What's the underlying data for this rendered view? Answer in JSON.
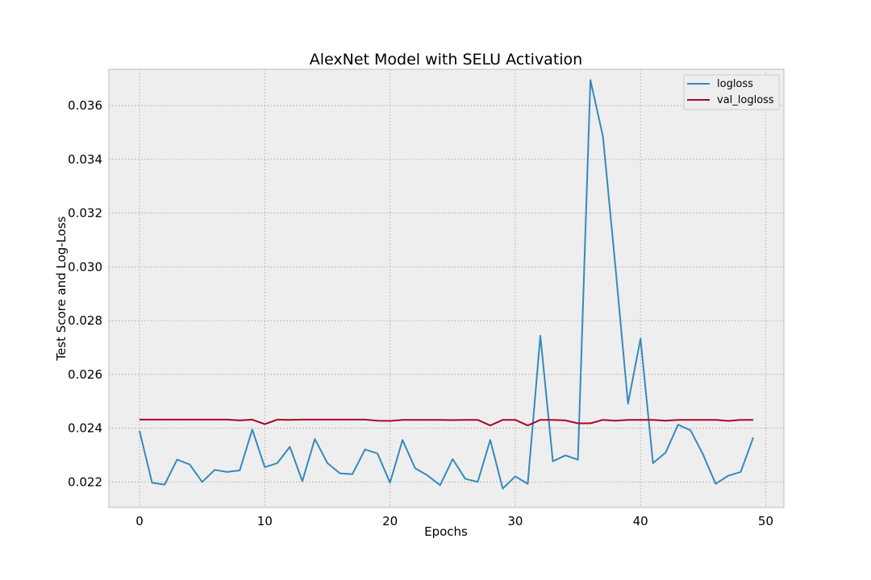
{
  "chart_data": {
    "type": "line",
    "title": "AlexNet Model with SELU Activation",
    "xlabel": "Epochs",
    "ylabel": "Test Score and Log-Loss",
    "xlim": [
      -2.45,
      51.45
    ],
    "ylim": [
      0.02105,
      0.03735
    ],
    "xticks": [
      0,
      10,
      20,
      30,
      40,
      50
    ],
    "xtick_labels": [
      "0",
      "10",
      "20",
      "30",
      "40",
      "50"
    ],
    "yticks": [
      0.022,
      0.024,
      0.026,
      0.028,
      0.03,
      0.032,
      0.034,
      0.036
    ],
    "ytick_labels": [
      "0.022",
      "0.024",
      "0.026",
      "0.028",
      "0.030",
      "0.032",
      "0.034",
      "0.036"
    ],
    "grid": true,
    "legend_position": "top-right",
    "x": [
      0,
      1,
      2,
      3,
      4,
      5,
      6,
      7,
      8,
      9,
      10,
      11,
      12,
      13,
      14,
      15,
      16,
      17,
      18,
      19,
      20,
      21,
      22,
      23,
      24,
      25,
      26,
      27,
      28,
      29,
      30,
      31,
      32,
      33,
      34,
      35,
      36,
      37,
      38,
      39,
      40,
      41,
      42,
      43,
      44,
      45,
      46,
      47,
      48,
      49
    ],
    "series": [
      {
        "name": "logloss",
        "color": "#348abd",
        "values": [
          0.0239,
          0.02197,
          0.0219,
          0.02283,
          0.02265,
          0.022,
          0.02245,
          0.02237,
          0.02243,
          0.02395,
          0.02255,
          0.0227,
          0.02331,
          0.02203,
          0.0236,
          0.0227,
          0.02232,
          0.02229,
          0.02321,
          0.02306,
          0.02197,
          0.02356,
          0.02251,
          0.02224,
          0.02188,
          0.02285,
          0.02212,
          0.022,
          0.02356,
          0.02175,
          0.02221,
          0.02193,
          0.02744,
          0.02277,
          0.02299,
          0.02283,
          0.03695,
          0.03485,
          0.03001,
          0.02491,
          0.02733,
          0.0227,
          0.02309,
          0.02413,
          0.02392,
          0.02302,
          0.02193,
          0.02223,
          0.02237,
          0.02365
        ]
      },
      {
        "name": "val_logloss",
        "color": "#a60628",
        "values": [
          0.02432,
          0.02432,
          0.02432,
          0.02432,
          0.02432,
          0.02432,
          0.02432,
          0.02432,
          0.02429,
          0.02432,
          0.02415,
          0.02432,
          0.02431,
          0.02432,
          0.02432,
          0.02432,
          0.02432,
          0.02432,
          0.02432,
          0.02428,
          0.02427,
          0.02431,
          0.02431,
          0.02431,
          0.02431,
          0.0243,
          0.02431,
          0.02431,
          0.0241,
          0.02431,
          0.02431,
          0.0241,
          0.02431,
          0.02431,
          0.02429,
          0.02418,
          0.02418,
          0.02431,
          0.02428,
          0.02431,
          0.02431,
          0.02431,
          0.02428,
          0.02431,
          0.02431,
          0.02431,
          0.02431,
          0.02427,
          0.02431,
          0.02431
        ]
      }
    ]
  }
}
